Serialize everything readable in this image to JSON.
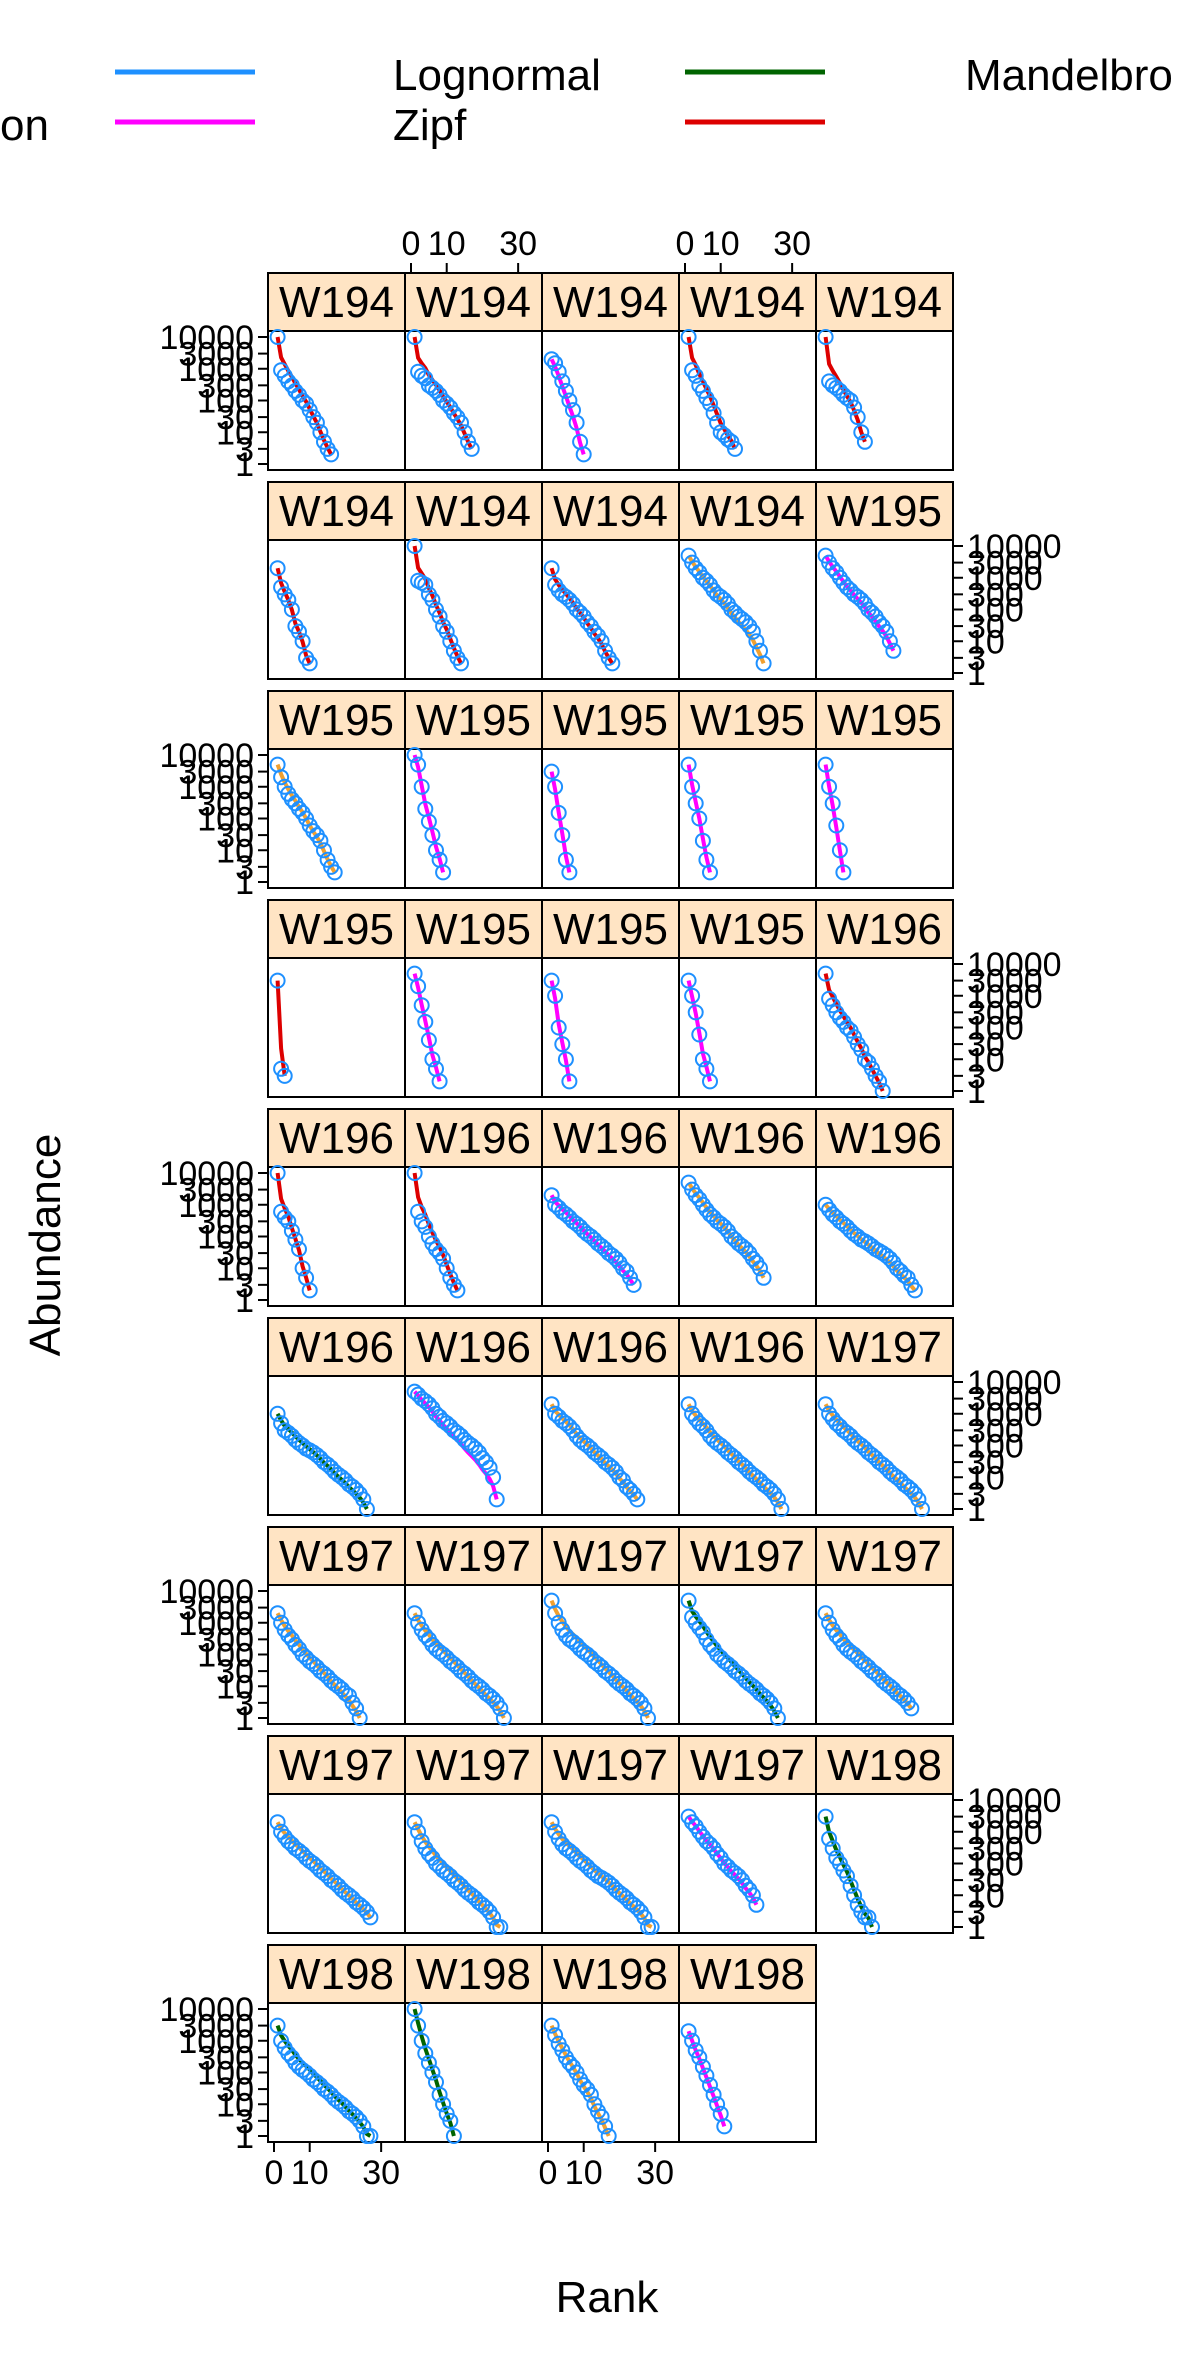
{
  "chart_data": {
    "type": "scatter",
    "layout": "lattice panels, 5 columns x 9 rows, one panel per site",
    "xlabel": "Rank",
    "ylabel": "Abundance",
    "x_tick_labels": [
      "0",
      "10",
      "30"
    ],
    "y_tick_labels": [
      "1",
      "3",
      "10",
      "30",
      "100",
      "300",
      "1000",
      "3000",
      "10000"
    ],
    "y_scale": "log",
    "xlim": [
      0,
      35
    ],
    "ylim": [
      1,
      10000
    ],
    "legend": {
      "placement": "top",
      "entries": [
        {
          "label": "Null / Preemption (text cut off; only \"on\" visible)",
          "visible_text": "on",
          "color": "#1e90ff"
        },
        {
          "label": "Lognormal",
          "visible_text": "Lognormal",
          "color": "#ff00ff"
        },
        {
          "label": "Zipf",
          "visible_text": "Zipf",
          "color": "#006400"
        },
        {
          "label": "Mandelbrot (text cut off)",
          "visible_text": "Mandelbro",
          "color": "#dd0000"
        }
      ]
    },
    "colors": {
      "points": "#1e90ff",
      "strip_bg": "#ffe4c4",
      "lognormal": "#ff00ff",
      "zipf": "#006400",
      "mandelbrot": "#dd0000",
      "fitted_orange": "#f0a030"
    },
    "panels": [
      {
        "label": "W194",
        "fit": "mandelbrot",
        "n": 16,
        "y": [
          10000,
          900,
          600,
          400,
          300,
          200,
          150,
          100,
          80,
          50,
          30,
          20,
          10,
          5,
          3,
          2
        ]
      },
      {
        "label": "W194",
        "fit": "mandelbrot",
        "n": 17,
        "y": [
          10000,
          800,
          600,
          500,
          300,
          250,
          200,
          150,
          100,
          80,
          60,
          40,
          30,
          20,
          10,
          5,
          3
        ]
      },
      {
        "label": "W194",
        "fit": "lognormal",
        "n": 10,
        "y": [
          2000,
          1500,
          800,
          400,
          200,
          100,
          50,
          20,
          5,
          2
        ]
      },
      {
        "label": "W194",
        "fit": "mandelbrot",
        "n": 14,
        "y": [
          10000,
          900,
          600,
          300,
          200,
          120,
          80,
          40,
          20,
          10,
          8,
          6,
          5,
          3
        ]
      },
      {
        "label": "W194",
        "fit": "mandelbrot",
        "n": 12,
        "y": [
          10000,
          400,
          300,
          250,
          200,
          150,
          120,
          100,
          60,
          30,
          10,
          5
        ]
      },
      {
        "label": "W194",
        "fit": "mandelbrot",
        "n": 10,
        "y": [
          2000,
          500,
          300,
          200,
          100,
          30,
          20,
          10,
          3,
          2
        ]
      },
      {
        "label": "W194",
        "fit": "mandelbrot",
        "n": 14,
        "y": [
          10000,
          800,
          700,
          600,
          300,
          200,
          100,
          60,
          30,
          20,
          10,
          5,
          3,
          2
        ]
      },
      {
        "label": "W194",
        "fit": "mandelbrot",
        "n": 18,
        "y": [
          2000,
          600,
          400,
          300,
          250,
          200,
          150,
          100,
          80,
          60,
          40,
          30,
          20,
          15,
          10,
          5,
          3,
          2
        ]
      },
      {
        "label": "W194",
        "fit": "orange",
        "n": 22,
        "y": [
          5000,
          3000,
          2000,
          1500,
          1000,
          800,
          600,
          400,
          300,
          250,
          200,
          150,
          100,
          80,
          60,
          50,
          40,
          30,
          20,
          10,
          5,
          2
        ]
      },
      {
        "label": "W195",
        "fit": "lognormal",
        "n": 20,
        "y": [
          5000,
          3000,
          2000,
          1500,
          1000,
          700,
          500,
          400,
          300,
          250,
          200,
          150,
          100,
          80,
          60,
          40,
          30,
          20,
          10,
          5
        ]
      },
      {
        "label": "W195",
        "fit": "orange",
        "n": 17,
        "y": [
          5000,
          2000,
          1000,
          600,
          400,
          300,
          200,
          150,
          100,
          60,
          40,
          30,
          20,
          10,
          5,
          3,
          2
        ]
      },
      {
        "label": "W195",
        "fit": "lognormal",
        "n": 9,
        "y": [
          10000,
          5000,
          1000,
          200,
          80,
          30,
          10,
          5,
          2
        ]
      },
      {
        "label": "W195",
        "fit": "lognormal",
        "n": 6,
        "y": [
          3000,
          1000,
          150,
          30,
          5,
          2
        ]
      },
      {
        "label": "W195",
        "fit": "lognormal",
        "n": 7,
        "y": [
          5000,
          1000,
          300,
          100,
          20,
          5,
          2
        ]
      },
      {
        "label": "W195",
        "fit": "lognormal",
        "n": 6,
        "y": [
          5000,
          1000,
          300,
          60,
          10,
          2
        ]
      },
      {
        "label": "W195",
        "fit": "mandelbrot",
        "n": 3,
        "y": [
          3000,
          5,
          3
        ]
      },
      {
        "label": "W195",
        "fit": "lognormal",
        "n": 8,
        "y": [
          5000,
          2000,
          500,
          150,
          40,
          10,
          5,
          2
        ]
      },
      {
        "label": "W195",
        "fit": "lognormal",
        "n": 6,
        "y": [
          3000,
          1000,
          100,
          30,
          10,
          2
        ]
      },
      {
        "label": "W195",
        "fit": "lognormal",
        "n": 7,
        "y": [
          3000,
          1000,
          300,
          60,
          10,
          5,
          2
        ]
      },
      {
        "label": "W196",
        "fit": "mandelbrot",
        "n": 17,
        "y": [
          5000,
          800,
          500,
          300,
          200,
          150,
          100,
          80,
          50,
          30,
          20,
          10,
          8,
          5,
          3,
          2,
          1
        ]
      },
      {
        "label": "W196",
        "fit": "mandelbrot",
        "n": 10,
        "y": [
          10000,
          600,
          400,
          300,
          150,
          80,
          40,
          10,
          5,
          2
        ]
      },
      {
        "label": "W196",
        "fit": "mandelbrot",
        "n": 13,
        "y": [
          10000,
          600,
          300,
          200,
          100,
          60,
          40,
          30,
          20,
          10,
          5,
          3,
          2
        ]
      },
      {
        "label": "W196",
        "fit": "lognormal",
        "n": 24,
        "y": [
          2000,
          1000,
          800,
          600,
          500,
          400,
          300,
          250,
          200,
          150,
          120,
          100,
          80,
          60,
          50,
          40,
          30,
          25,
          20,
          15,
          10,
          8,
          5,
          3
        ]
      },
      {
        "label": "W196",
        "fit": "orange",
        "n": 22,
        "y": [
          5000,
          3000,
          2000,
          1500,
          1000,
          700,
          500,
          400,
          300,
          250,
          200,
          150,
          100,
          80,
          60,
          50,
          40,
          30,
          20,
          15,
          10,
          5
        ]
      },
      {
        "label": "W196",
        "fit": "orange",
        "n": 26,
        "y": [
          1000,
          700,
          500,
          400,
          300,
          250,
          200,
          150,
          120,
          100,
          80,
          70,
          60,
          50,
          40,
          35,
          30,
          25,
          20,
          15,
          10,
          8,
          6,
          5,
          3,
          2
        ]
      },
      {
        "label": "W196",
        "fit": "zipf",
        "n": 26,
        "y": [
          1000,
          500,
          300,
          250,
          200,
          150,
          120,
          100,
          80,
          70,
          60,
          50,
          40,
          30,
          25,
          20,
          15,
          12,
          10,
          8,
          6,
          5,
          4,
          3,
          2,
          1
        ]
      },
      {
        "label": "W196",
        "fit": "lognormal",
        "n": 24,
        "y": [
          5000,
          4000,
          3000,
          2500,
          2000,
          1500,
          1000,
          800,
          600,
          500,
          400,
          300,
          250,
          200,
          150,
          120,
          100,
          80,
          60,
          40,
          30,
          20,
          10,
          2
        ]
      },
      {
        "label": "W196",
        "fit": "orange",
        "n": 25,
        "y": [
          2000,
          1000,
          800,
          600,
          500,
          400,
          300,
          200,
          150,
          120,
          100,
          80,
          60,
          50,
          40,
          30,
          25,
          20,
          15,
          10,
          8,
          5,
          4,
          3,
          2
        ]
      },
      {
        "label": "W196",
        "fit": "orange",
        "n": 27,
        "y": [
          2000,
          1000,
          700,
          500,
          400,
          300,
          200,
          150,
          120,
          100,
          80,
          60,
          50,
          40,
          30,
          25,
          20,
          15,
          12,
          10,
          8,
          6,
          5,
          4,
          3,
          2,
          1
        ]
      },
      {
        "label": "W197",
        "fit": "orange",
        "n": 28,
        "y": [
          2000,
          1000,
          700,
          500,
          400,
          300,
          250,
          200,
          150,
          120,
          100,
          80,
          60,
          50,
          40,
          30,
          25,
          20,
          15,
          12,
          10,
          8,
          6,
          5,
          4,
          3,
          2,
          1
        ]
      },
      {
        "label": "W197",
        "fit": "orange",
        "n": 24,
        "y": [
          2000,
          1000,
          600,
          400,
          300,
          200,
          150,
          100,
          80,
          60,
          50,
          40,
          30,
          25,
          20,
          15,
          12,
          10,
          8,
          6,
          5,
          3,
          2,
          1
        ]
      },
      {
        "label": "W197",
        "fit": "orange",
        "n": 26,
        "y": [
          2000,
          1000,
          600,
          400,
          300,
          200,
          150,
          120,
          100,
          80,
          60,
          50,
          40,
          30,
          25,
          20,
          15,
          12,
          10,
          8,
          6,
          5,
          4,
          3,
          2,
          1
        ]
      },
      {
        "label": "W197",
        "fit": "orange",
        "n": 28,
        "y": [
          5000,
          2000,
          1000,
          600,
          400,
          300,
          250,
          200,
          150,
          120,
          100,
          80,
          60,
          50,
          40,
          30,
          25,
          20,
          15,
          12,
          10,
          8,
          6,
          5,
          4,
          3,
          2,
          1
        ]
      },
      {
        "label": "W197",
        "fit": "zipf",
        "n": 26,
        "y": [
          5000,
          1500,
          1000,
          700,
          500,
          300,
          200,
          150,
          100,
          80,
          60,
          50,
          40,
          30,
          25,
          20,
          15,
          12,
          10,
          8,
          6,
          5,
          4,
          3,
          2,
          1
        ]
      },
      {
        "label": "W197",
        "fit": "orange",
        "n": 25,
        "y": [
          2000,
          1000,
          600,
          400,
          300,
          200,
          150,
          120,
          100,
          80,
          60,
          50,
          40,
          30,
          25,
          20,
          15,
          12,
          10,
          8,
          6,
          5,
          4,
          3,
          2
        ]
      },
      {
        "label": "W197",
        "fit": "orange",
        "n": 27,
        "y": [
          2000,
          1000,
          700,
          500,
          400,
          300,
          250,
          200,
          150,
          120,
          100,
          80,
          60,
          50,
          40,
          30,
          25,
          20,
          15,
          12,
          10,
          8,
          6,
          5,
          4,
          3,
          2
        ]
      },
      {
        "label": "W197",
        "fit": "orange",
        "n": 25,
        "y": [
          2000,
          1000,
          500,
          300,
          200,
          150,
          100,
          80,
          60,
          50,
          40,
          30,
          25,
          20,
          15,
          12,
          10,
          8,
          6,
          5,
          4,
          3,
          2,
          1,
          1
        ]
      },
      {
        "label": "W197",
        "fit": "orange",
        "n": 29,
        "y": [
          2000,
          1000,
          600,
          400,
          300,
          250,
          200,
          150,
          120,
          100,
          80,
          60,
          50,
          40,
          35,
          30,
          25,
          20,
          15,
          12,
          10,
          8,
          6,
          5,
          4,
          3,
          2,
          1,
          1
        ]
      },
      {
        "label": "W197",
        "fit": "lognormal",
        "n": 20,
        "y": [
          3000,
          2000,
          1500,
          1000,
          700,
          500,
          400,
          300,
          200,
          150,
          100,
          80,
          60,
          50,
          40,
          30,
          20,
          15,
          10,
          5
        ]
      },
      {
        "label": "W198",
        "fit": "zipf",
        "n": 14,
        "y": [
          3000,
          600,
          300,
          150,
          100,
          60,
          40,
          20,
          10,
          5,
          3,
          2,
          2,
          1
        ]
      },
      {
        "label": "W198",
        "fit": "zipf",
        "n": 27,
        "y": [
          3000,
          1000,
          600,
          400,
          300,
          200,
          150,
          120,
          100,
          80,
          60,
          50,
          40,
          30,
          25,
          20,
          15,
          12,
          10,
          8,
          6,
          5,
          4,
          3,
          2,
          1,
          1
        ]
      },
      {
        "label": "W198",
        "fit": "zipf",
        "n": 12,
        "y": [
          10000,
          3000,
          1000,
          400,
          200,
          100,
          50,
          20,
          10,
          5,
          3,
          1
        ]
      },
      {
        "label": "W198",
        "fit": "orange",
        "n": 17,
        "y": [
          3000,
          1500,
          800,
          500,
          300,
          200,
          150,
          100,
          60,
          40,
          30,
          20,
          10,
          6,
          4,
          2,
          1
        ]
      },
      {
        "label": "W198",
        "fit": "lognormal",
        "n": 11,
        "y": [
          2000,
          1000,
          500,
          300,
          150,
          80,
          40,
          20,
          10,
          5,
          2
        ]
      }
    ]
  }
}
